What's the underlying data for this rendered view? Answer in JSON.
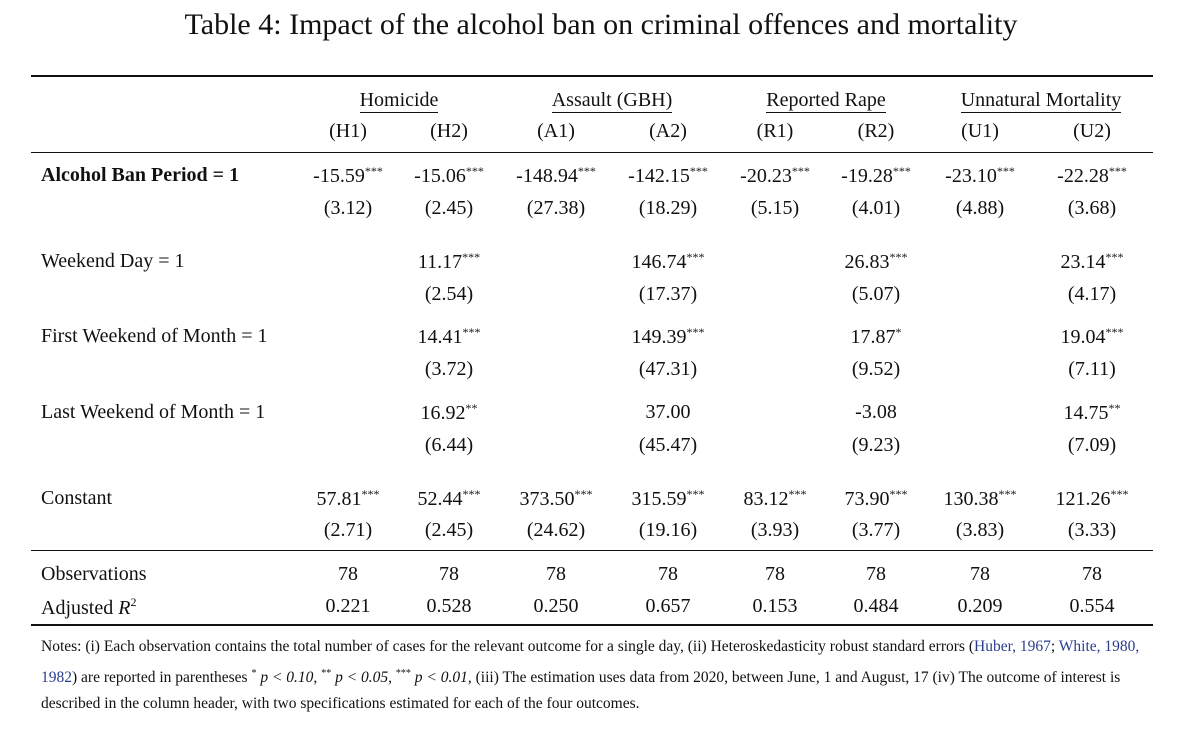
{
  "title": "Table 4: Impact of the alcohol ban on criminal offences and mortality",
  "groups": [
    "Homicide",
    "Assault (GBH)",
    "Reported Rape",
    "Unnatural Mortality"
  ],
  "columns": [
    "(H1)",
    "(H2)",
    "(A1)",
    "(A2)",
    "(R1)",
    "(R2)",
    "(U1)",
    "(U2)"
  ],
  "rows": [
    {
      "label": "Alcohol Ban Period = 1",
      "bold": true,
      "coef": [
        "-15.59",
        "-15.06",
        "-148.94",
        "-142.15",
        "-20.23",
        "-19.28",
        "-23.10",
        "-22.28"
      ],
      "stars": [
        "***",
        "***",
        "***",
        "***",
        "***",
        "***",
        "***",
        "***"
      ],
      "se": [
        "(3.12)",
        "(2.45)",
        "(27.38)",
        "(18.29)",
        "(5.15)",
        "(4.01)",
        "(4.88)",
        "(3.68)"
      ]
    },
    {
      "label": "Weekend Day = 1",
      "bold": false,
      "coef": [
        "",
        "11.17",
        "",
        "146.74",
        "",
        "26.83",
        "",
        "23.14"
      ],
      "stars": [
        "",
        "***",
        "",
        "***",
        "",
        "***",
        "",
        "***"
      ],
      "se": [
        "",
        "(2.54)",
        "",
        "(17.37)",
        "",
        "(5.07)",
        "",
        "(4.17)"
      ]
    },
    {
      "label": "First Weekend of Month = 1",
      "bold": false,
      "coef": [
        "",
        "14.41",
        "",
        "149.39",
        "",
        "17.87",
        "",
        "19.04"
      ],
      "stars": [
        "",
        "***",
        "",
        "***",
        "",
        "*",
        "",
        "***"
      ],
      "se": [
        "",
        "(3.72)",
        "",
        "(47.31)",
        "",
        "(9.52)",
        "",
        "(7.11)"
      ]
    },
    {
      "label": "Last Weekend of Month = 1",
      "bold": false,
      "coef": [
        "",
        "16.92",
        "",
        "37.00",
        "",
        "-3.08",
        "",
        "14.75"
      ],
      "stars": [
        "",
        "**",
        "",
        "",
        "",
        "",
        "",
        "**"
      ],
      "se": [
        "",
        "(6.44)",
        "",
        "(45.47)",
        "",
        "(9.23)",
        "",
        "(7.09)"
      ]
    },
    {
      "label": "Constant",
      "bold": false,
      "coef": [
        "57.81",
        "52.44",
        "373.50",
        "315.59",
        "83.12",
        "73.90",
        "130.38",
        "121.26"
      ],
      "stars": [
        "***",
        "***",
        "***",
        "***",
        "***",
        "***",
        "***",
        "***"
      ],
      "se": [
        "(2.71)",
        "(2.45)",
        "(24.62)",
        "(19.16)",
        "(3.93)",
        "(3.77)",
        "(3.83)",
        "(3.33)"
      ]
    }
  ],
  "stats": [
    {
      "label": "Observations",
      "values": [
        "78",
        "78",
        "78",
        "78",
        "78",
        "78",
        "78",
        "78"
      ]
    },
    {
      "label": "Adjusted R",
      "label_sup": "2",
      "values": [
        "0.221",
        "0.528",
        "0.250",
        "0.657",
        "0.153",
        "0.484",
        "0.209",
        "0.554"
      ]
    }
  ],
  "notes": {
    "part1": "Notes: (i) Each observation contains the total number of cases for the relevant outcome for a single day, (ii) Heteroskedasticity robust standard errors (",
    "cite1_name": "Huber",
    "cite1_year": "1967",
    "sep1": "; ",
    "cite2_name": "White",
    "cite2_year1": "1980",
    "cite2_year2": "1982",
    "part2": ") are reported in parentheses ",
    "star1": "*",
    "p1": " p < 0.10, ",
    "star2": "**",
    "p2": " p < 0.05, ",
    "star3": "***",
    "p3": " p < 0.01,",
    "part3": " (iii) The estimation uses data from 2020, between June, 1 and August, 17 (iv) The outcome of interest is described in the column header, with two specifications estimated for each of the four outcomes."
  }
}
